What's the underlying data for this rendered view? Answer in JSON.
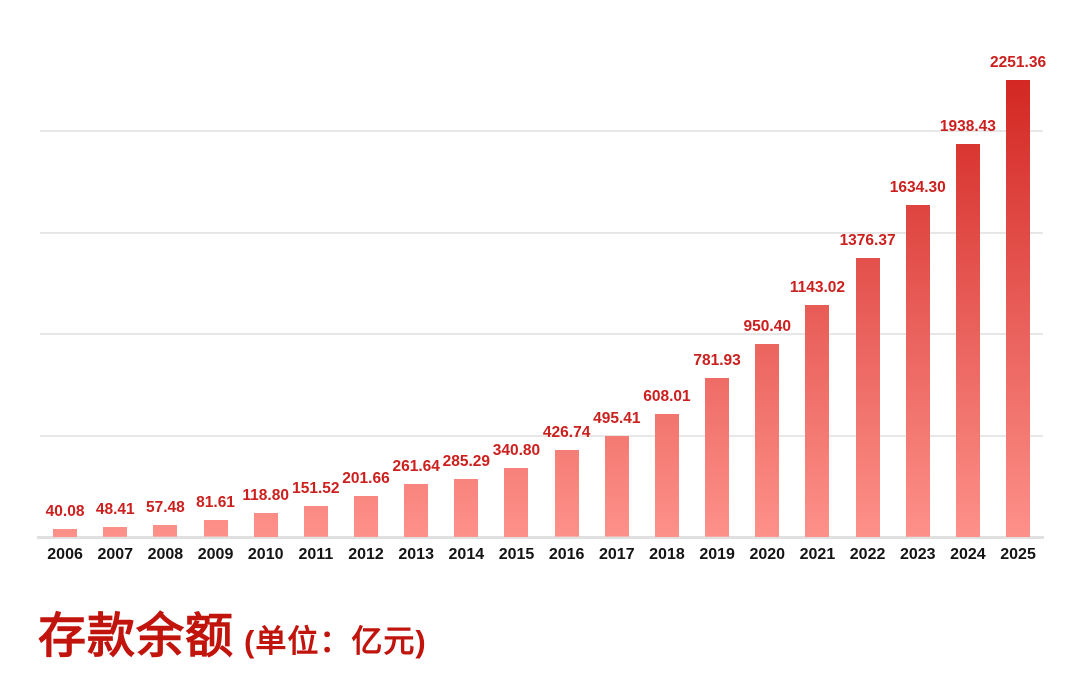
{
  "chart_data": {
    "type": "bar",
    "title": "存款余额",
    "unit_label": "(单位：亿元)",
    "categories": [
      "2006",
      "2007",
      "2008",
      "2009",
      "2010",
      "2011",
      "2012",
      "2013",
      "2014",
      "2015",
      "2016",
      "2017",
      "2018",
      "2019",
      "2020",
      "2021",
      "2022",
      "2023",
      "2024",
      "2025"
    ],
    "values": [
      40.08,
      48.41,
      57.48,
      81.61,
      118.8,
      151.52,
      201.66,
      261.64,
      285.29,
      340.8,
      426.74,
      495.41,
      608.01,
      781.93,
      950.4,
      1143.02,
      1376.37,
      1634.3,
      1938.43,
      2251.36
    ],
    "value_label_decimals": 2,
    "xlabel": "",
    "ylabel": "",
    "ylim": [
      0,
      2468
    ],
    "gridline_values": [
      500,
      1000,
      1500,
      2000
    ],
    "grid": "horizontal, unlabeled",
    "legend": "none",
    "data_labels": "above each bar, red, bold"
  },
  "style": {
    "background_color": "#ffffff",
    "bar_gradient_top_color": "#d32723",
    "bar_gradient_bottom_color": "#fd918a",
    "value_label_color": "#cb201e",
    "year_label_color": "#141414",
    "title_color": "#c1140d",
    "gridline_color": "#e7e7e7",
    "axis_line_color": "#e0e0e0"
  }
}
